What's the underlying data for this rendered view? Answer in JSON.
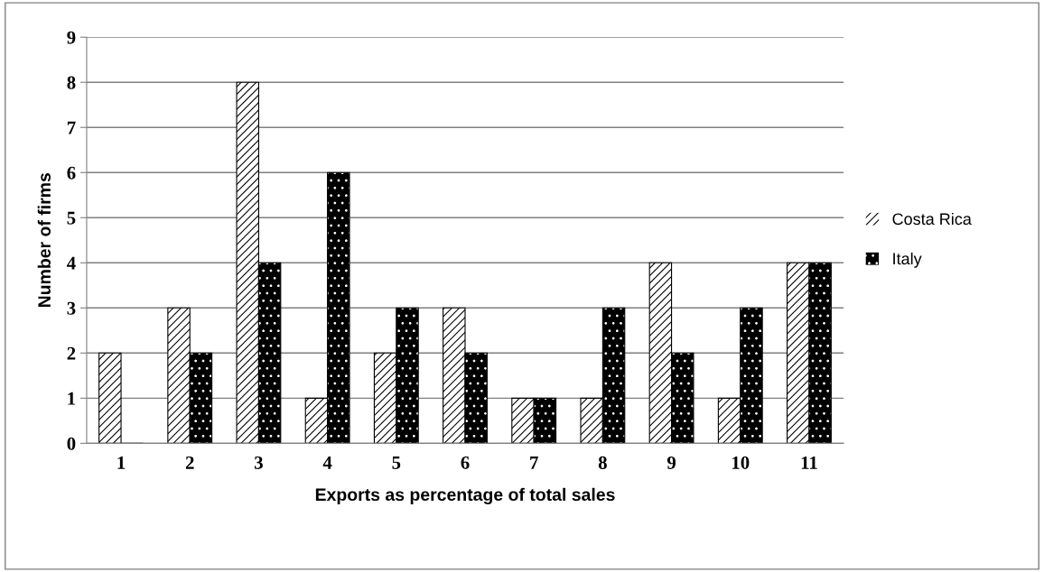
{
  "chart_data": {
    "type": "bar",
    "xlabel": "Exports as percentage of total sales",
    "ylabel": "Number of firms",
    "categories": [
      "1",
      "2",
      "3",
      "4",
      "5",
      "6",
      "7",
      "8",
      "9",
      "10",
      "11"
    ],
    "series": [
      {
        "name": "Costa Rica",
        "color": "#ffffff",
        "values": [
          2,
          3,
          8,
          1,
          2,
          3,
          1,
          1,
          4,
          1,
          4
        ]
      },
      {
        "name": "Italy",
        "color": "#000000",
        "values": [
          0,
          2,
          4,
          6,
          3,
          2,
          1,
          3,
          2,
          3,
          4
        ]
      }
    ],
    "ylim": [
      0,
      9
    ],
    "yticks": [
      0,
      1,
      2,
      3,
      4,
      5,
      6,
      7,
      8,
      9
    ],
    "grid": "y",
    "legend": "right"
  }
}
